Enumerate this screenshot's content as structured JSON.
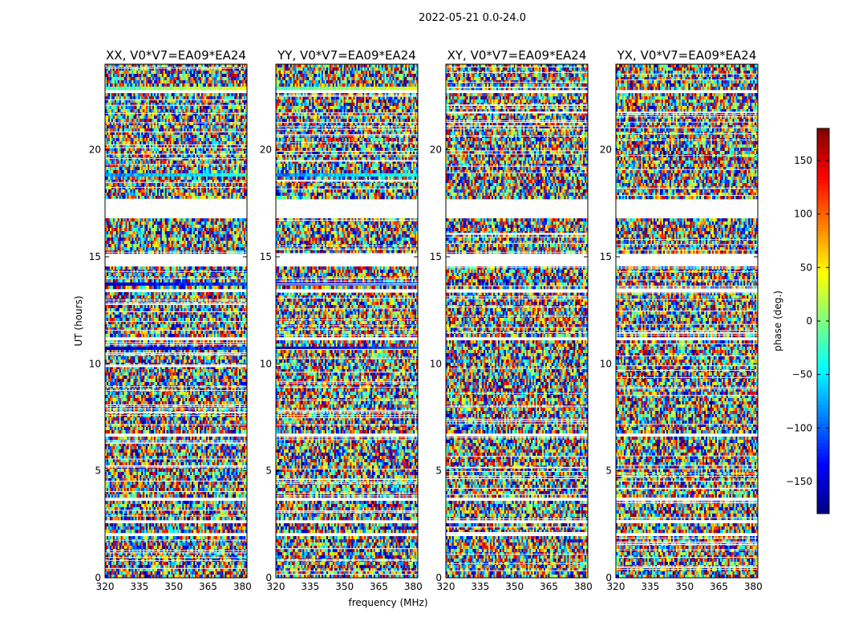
{
  "chart_data": {
    "type": "heatmap",
    "suptitle": "2022-05-21 0.0-24.0",
    "xlabel": "frequency (MHz)",
    "ylabel": "UT (hours)",
    "x_range": [
      320,
      382
    ],
    "y_range": [
      0,
      24
    ],
    "xticks": [
      320,
      335,
      350,
      365,
      380
    ],
    "yticks": [
      0,
      5,
      10,
      15,
      20
    ],
    "panels": [
      {
        "title": "XX, V0*V7=EA09*EA24",
        "pol": "XX"
      },
      {
        "title": "YY, V0*V7=EA09*EA24",
        "pol": "YY"
      },
      {
        "title": "XY, V0*V7=EA09*EA24",
        "pol": "XY"
      },
      {
        "title": "YX, V0*V7=EA09*EA24",
        "pol": "YX"
      }
    ],
    "flagged_ut_ranges": [
      [
        1.9,
        2.15
      ],
      [
        2.55,
        2.65
      ],
      [
        3.6,
        3.68
      ],
      [
        4.75,
        4.85
      ],
      [
        6.65,
        6.8
      ],
      [
        8.55,
        8.62
      ],
      [
        9.9,
        9.96
      ],
      [
        11.1,
        11.18
      ],
      [
        13.35,
        13.45
      ],
      [
        14.6,
        15.1
      ],
      [
        16.85,
        17.65
      ],
      [
        19.3,
        19.38
      ],
      [
        22.6,
        22.75
      ],
      [
        23.5,
        23.56
      ]
    ],
    "coherent_phase_bands": [
      {
        "pols": [
          "XX",
          "YY"
        ],
        "ut": [
          22.7,
          22.95
        ],
        "phase_deg": -20
      },
      {
        "pols": [
          "XX",
          "YY"
        ],
        "ut": [
          18.75,
          18.95
        ],
        "phase_deg": -90
      },
      {
        "pols": [
          "XX",
          "YY"
        ],
        "ut": [
          13.65,
          13.85
        ],
        "phase_deg": -160
      },
      {
        "pols": [
          "XX",
          "YY"
        ],
        "ut": [
          10.7,
          10.85
        ],
        "phase_deg": -160
      }
    ],
    "colorbar": {
      "label": "phase (deg.)",
      "range": [
        -180,
        180
      ],
      "ticks": [
        150,
        100,
        50,
        0,
        -50,
        -100,
        -150
      ],
      "tick_labels": [
        "150",
        "100",
        "50",
        "0",
        "−50",
        "−100",
        "−150"
      ],
      "colormap": "jet"
    }
  }
}
